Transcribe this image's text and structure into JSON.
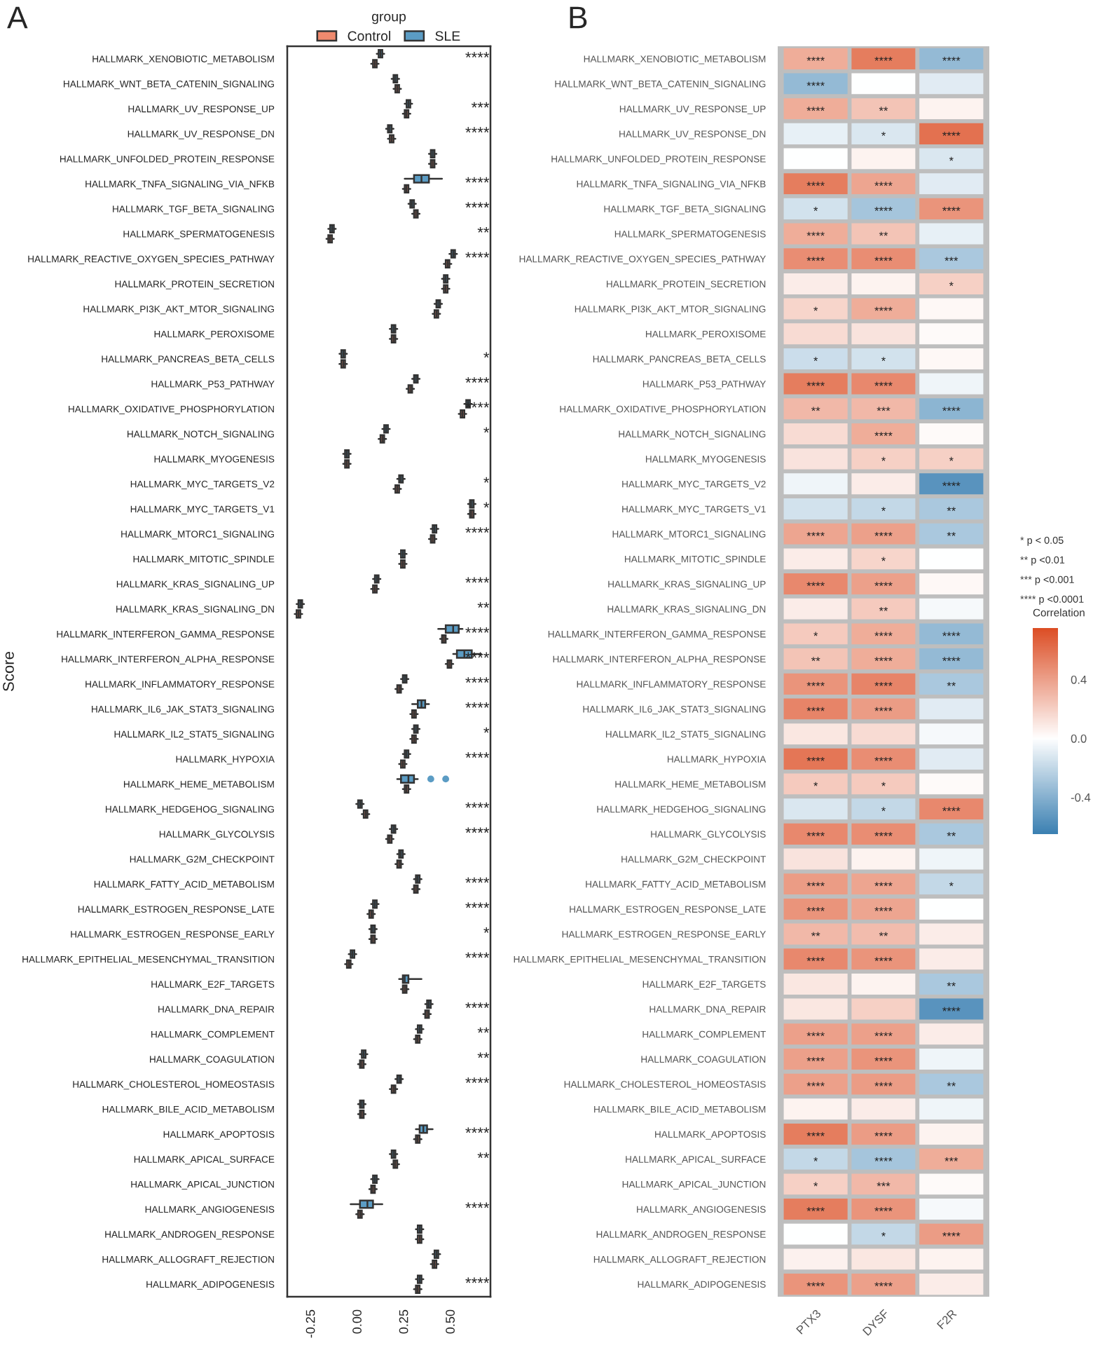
{
  "chart_data": [
    {
      "type": "box",
      "title": "A",
      "orientation": "horizontal",
      "ylabel": "Score",
      "legend_title": "group",
      "legend": "top",
      "categories": [
        "HALLMARK_XENOBIOTIC_METABOLISM",
        "HALLMARK_WNT_BETA_CATENIN_SIGNALING",
        "HALLMARK_UV_RESPONSE_UP",
        "HALLMARK_UV_RESPONSE_DN",
        "HALLMARK_UNFOLDED_PROTEIN_RESPONSE",
        "HALLMARK_TNFA_SIGNALING_VIA_NFKB",
        "HALLMARK_TGF_BETA_SIGNALING",
        "HALLMARK_SPERMATOGENESIS",
        "HALLMARK_REACTIVE_OXYGEN_SPECIES_PATHWAY",
        "HALLMARK_PROTEIN_SECRETION",
        "HALLMARK_PI3K_AKT_MTOR_SIGNALING",
        "HALLMARK_PEROXISOME",
        "HALLMARK_PANCREAS_BETA_CELLS",
        "HALLMARK_P53_PATHWAY",
        "HALLMARK_OXIDATIVE_PHOSPHORYLATION",
        "HALLMARK_NOTCH_SIGNALING",
        "HALLMARK_MYOGENESIS",
        "HALLMARK_MYC_TARGETS_V2",
        "HALLMARK_MYC_TARGETS_V1",
        "HALLMARK_MTORC1_SIGNALING",
        "HALLMARK_MITOTIC_SPINDLE",
        "HALLMARK_KRAS_SIGNALING_UP",
        "HALLMARK_KRAS_SIGNALING_DN",
        "HALLMARK_INTERFERON_GAMMA_RESPONSE",
        "HALLMARK_INTERFERON_ALPHA_RESPONSE",
        "HALLMARK_INFLAMMATORY_RESPONSE",
        "HALLMARK_IL6_JAK_STAT3_SIGNALING",
        "HALLMARK_IL2_STAT5_SIGNALING",
        "HALLMARK_HYPOXIA",
        "HALLMARK_HEME_METABOLISM",
        "HALLMARK_HEDGEHOG_SIGNALING",
        "HALLMARK_GLYCOLYSIS",
        "HALLMARK_G2M_CHECKPOINT",
        "HALLMARK_FATTY_ACID_METABOLISM",
        "HALLMARK_ESTROGEN_RESPONSE_LATE",
        "HALLMARK_ESTROGEN_RESPONSE_EARLY",
        "HALLMARK_EPITHELIAL_MESENCHYMAL_TRANSITION",
        "HALLMARK_E2F_TARGETS",
        "HALLMARK_DNA_REPAIR",
        "HALLMARK_COMPLEMENT",
        "HALLMARK_COAGULATION",
        "HALLMARK_CHOLESTEROL_HOMEOSTASIS",
        "HALLMARK_BILE_ACID_METABOLISM",
        "HALLMARK_APOPTOSIS",
        "HALLMARK_APICAL_SURFACE",
        "HALLMARK_APICAL_JUNCTION",
        "HALLMARK_ANGIOGENESIS",
        "HALLMARK_ANDROGEN_RESPONSE",
        "HALLMARK_ALLOGRAFT_REJECTION",
        "HALLMARK_ADIPOGENESIS"
      ],
      "xlim": [
        -0.38,
        0.71
      ],
      "xticks": [
        {
          "value": -0.25,
          "label": "-0.25"
        },
        {
          "value": 0,
          "label": "0.00"
        },
        {
          "value": 0.25,
          "label": "0.25"
        },
        {
          "value": 0.5,
          "label": "0.50"
        }
      ],
      "series": [
        {
          "name": "Control",
          "color": "#ef8a6e",
          "boxes": [
            {
              "low": 0.07,
              "q1": 0.08,
              "median": 0.09,
              "q3": 0.1,
              "high": 0.11
            },
            {
              "low": 0.19,
              "q1": 0.2,
              "median": 0.21,
              "q3": 0.22,
              "high": 0.23
            },
            {
              "low": 0.24,
              "q1": 0.25,
              "median": 0.26,
              "q3": 0.27,
              "high": 0.28
            },
            {
              "low": 0.16,
              "q1": 0.17,
              "median": 0.18,
              "q3": 0.19,
              "high": 0.2
            },
            {
              "low": 0.38,
              "q1": 0.39,
              "median": 0.4,
              "q3": 0.41,
              "high": 0.42
            },
            {
              "low": 0.24,
              "q1": 0.25,
              "median": 0.26,
              "q3": 0.27,
              "high": 0.28
            },
            {
              "low": 0.29,
              "q1": 0.3,
              "median": 0.31,
              "q3": 0.32,
              "high": 0.33
            },
            {
              "low": -0.17,
              "q1": -0.16,
              "median": -0.15,
              "q3": -0.14,
              "high": -0.13
            },
            {
              "low": 0.46,
              "q1": 0.47,
              "median": 0.48,
              "q3": 0.49,
              "high": 0.5
            },
            {
              "low": 0.45,
              "q1": 0.46,
              "median": 0.47,
              "q3": 0.48,
              "high": 0.49
            },
            {
              "low": 0.4,
              "q1": 0.41,
              "median": 0.42,
              "q3": 0.43,
              "high": 0.44
            },
            {
              "low": 0.17,
              "q1": 0.18,
              "median": 0.19,
              "q3": 0.2,
              "high": 0.21
            },
            {
              "low": -0.1,
              "q1": -0.09,
              "median": -0.08,
              "q3": -0.07,
              "high": -0.06
            },
            {
              "low": 0.26,
              "q1": 0.27,
              "median": 0.28,
              "q3": 0.29,
              "high": 0.3
            },
            {
              "low": 0.54,
              "q1": 0.55,
              "median": 0.56,
              "q3": 0.57,
              "high": 0.58
            },
            {
              "low": 0.11,
              "q1": 0.12,
              "median": 0.13,
              "q3": 0.14,
              "high": 0.15
            },
            {
              "low": -0.08,
              "q1": -0.07,
              "median": -0.06,
              "q3": -0.05,
              "high": -0.04
            },
            {
              "low": 0.19,
              "q1": 0.2,
              "median": 0.21,
              "q3": 0.22,
              "high": 0.23
            },
            {
              "low": 0.59,
              "q1": 0.6,
              "median": 0.61,
              "q3": 0.62,
              "high": 0.63
            },
            {
              "low": 0.38,
              "q1": 0.39,
              "median": 0.4,
              "q3": 0.41,
              "high": 0.42
            },
            {
              "low": 0.22,
              "q1": 0.23,
              "median": 0.24,
              "q3": 0.25,
              "high": 0.26
            },
            {
              "low": 0.07,
              "q1": 0.08,
              "median": 0.09,
              "q3": 0.1,
              "high": 0.11
            },
            {
              "low": -0.34,
              "q1": -0.33,
              "median": -0.32,
              "q3": -0.31,
              "high": -0.3
            },
            {
              "low": 0.44,
              "q1": 0.45,
              "median": 0.46,
              "q3": 0.47,
              "high": 0.48
            },
            {
              "low": 0.47,
              "q1": 0.48,
              "median": 0.49,
              "q3": 0.5,
              "high": 0.51
            },
            {
              "low": 0.2,
              "q1": 0.21,
              "median": 0.22,
              "q3": 0.23,
              "high": 0.24
            },
            {
              "low": 0.28,
              "q1": 0.29,
              "median": 0.3,
              "q3": 0.31,
              "high": 0.32
            },
            {
              "low": 0.28,
              "q1": 0.29,
              "median": 0.3,
              "q3": 0.31,
              "high": 0.32
            },
            {
              "low": 0.22,
              "q1": 0.23,
              "median": 0.24,
              "q3": 0.25,
              "high": 0.26
            },
            {
              "low": 0.24,
              "q1": 0.25,
              "median": 0.26,
              "q3": 0.27,
              "high": 0.28
            },
            {
              "low": 0.02,
              "q1": 0.03,
              "median": 0.04,
              "q3": 0.05,
              "high": 0.06
            },
            {
              "low": 0.15,
              "q1": 0.16,
              "median": 0.17,
              "q3": 0.18,
              "high": 0.19
            },
            {
              "low": 0.2,
              "q1": 0.21,
              "median": 0.22,
              "q3": 0.23,
              "high": 0.24
            },
            {
              "low": 0.29,
              "q1": 0.3,
              "median": 0.31,
              "q3": 0.32,
              "high": 0.33
            },
            {
              "low": 0.05,
              "q1": 0.06,
              "median": 0.07,
              "q3": 0.08,
              "high": 0.09
            },
            {
              "low": 0.06,
              "q1": 0.07,
              "median": 0.08,
              "q3": 0.09,
              "high": 0.1
            },
            {
              "low": -0.07,
              "q1": -0.06,
              "median": -0.05,
              "q3": -0.04,
              "high": -0.03
            },
            {
              "low": 0.23,
              "q1": 0.24,
              "median": 0.25,
              "q3": 0.26,
              "high": 0.27
            },
            {
              "low": 0.35,
              "q1": 0.36,
              "median": 0.37,
              "q3": 0.38,
              "high": 0.39
            },
            {
              "low": 0.3,
              "q1": 0.31,
              "median": 0.32,
              "q3": 0.33,
              "high": 0.34
            },
            {
              "low": 0.0,
              "q1": 0.01,
              "median": 0.02,
              "q3": 0.03,
              "high": 0.04
            },
            {
              "low": 0.17,
              "q1": 0.18,
              "median": 0.19,
              "q3": 0.2,
              "high": 0.21
            },
            {
              "low": 0.0,
              "q1": 0.01,
              "median": 0.02,
              "q3": 0.03,
              "high": 0.04
            },
            {
              "low": 0.3,
              "q1": 0.31,
              "median": 0.32,
              "q3": 0.33,
              "high": 0.34
            },
            {
              "low": 0.18,
              "q1": 0.19,
              "median": 0.2,
              "q3": 0.21,
              "high": 0.22
            },
            {
              "low": 0.06,
              "q1": 0.07,
              "median": 0.08,
              "q3": 0.09,
              "high": 0.1
            },
            {
              "low": -0.01,
              "q1": 0.0,
              "median": 0.01,
              "q3": 0.02,
              "high": 0.03
            },
            {
              "low": 0.31,
              "q1": 0.32,
              "median": 0.33,
              "q3": 0.34,
              "high": 0.35
            },
            {
              "low": 0.39,
              "q1": 0.4,
              "median": 0.41,
              "q3": 0.42,
              "high": 0.43
            },
            {
              "low": 0.3,
              "q1": 0.31,
              "median": 0.32,
              "q3": 0.33,
              "high": 0.34
            }
          ]
        },
        {
          "name": "SLE",
          "color": "#5b9cc4",
          "boxes": [
            {
              "low": 0.1,
              "q1": 0.11,
              "median": 0.12,
              "q3": 0.13,
              "high": 0.14
            },
            {
              "low": 0.18,
              "q1": 0.19,
              "median": 0.2,
              "q3": 0.21,
              "high": 0.22
            },
            {
              "low": 0.25,
              "q1": 0.26,
              "median": 0.27,
              "q3": 0.28,
              "high": 0.29
            },
            {
              "low": 0.15,
              "q1": 0.16,
              "median": 0.17,
              "q3": 0.18,
              "high": 0.19
            },
            {
              "low": 0.38,
              "q1": 0.39,
              "median": 0.4,
              "q3": 0.41,
              "high": 0.42
            },
            {
              "low": 0.25,
              "q1": 0.3,
              "median": 0.34,
              "q3": 0.38,
              "high": 0.45
            },
            {
              "low": 0.27,
              "q1": 0.28,
              "median": 0.29,
              "q3": 0.3,
              "high": 0.31
            },
            {
              "low": -0.16,
              "q1": -0.15,
              "median": -0.14,
              "q3": -0.13,
              "high": -0.12
            },
            {
              "low": 0.49,
              "q1": 0.5,
              "median": 0.51,
              "q3": 0.52,
              "high": 0.53
            },
            {
              "low": 0.45,
              "q1": 0.46,
              "median": 0.47,
              "q3": 0.48,
              "high": 0.49
            },
            {
              "low": 0.41,
              "q1": 0.42,
              "median": 0.43,
              "q3": 0.44,
              "high": 0.45
            },
            {
              "low": 0.17,
              "q1": 0.18,
              "median": 0.19,
              "q3": 0.2,
              "high": 0.21
            },
            {
              "low": -0.1,
              "q1": -0.09,
              "median": -0.08,
              "q3": -0.07,
              "high": -0.06
            },
            {
              "low": 0.29,
              "q1": 0.3,
              "median": 0.31,
              "q3": 0.32,
              "high": 0.33
            },
            {
              "low": 0.57,
              "q1": 0.58,
              "median": 0.59,
              "q3": 0.6,
              "high": 0.61
            },
            {
              "low": 0.13,
              "q1": 0.14,
              "median": 0.15,
              "q3": 0.16,
              "high": 0.17
            },
            {
              "low": -0.08,
              "q1": -0.07,
              "median": -0.06,
              "q3": -0.05,
              "high": -0.04
            },
            {
              "low": 0.21,
              "q1": 0.22,
              "median": 0.23,
              "q3": 0.24,
              "high": 0.25
            },
            {
              "low": 0.59,
              "q1": 0.6,
              "median": 0.61,
              "q3": 0.62,
              "high": 0.63
            },
            {
              "low": 0.39,
              "q1": 0.4,
              "median": 0.41,
              "q3": 0.42,
              "high": 0.43
            },
            {
              "low": 0.22,
              "q1": 0.23,
              "median": 0.24,
              "q3": 0.25,
              "high": 0.26
            },
            {
              "low": 0.08,
              "q1": 0.09,
              "median": 0.1,
              "q3": 0.11,
              "high": 0.12
            },
            {
              "low": -0.33,
              "q1": -0.32,
              "median": -0.31,
              "q3": -0.3,
              "high": -0.29
            },
            {
              "low": 0.43,
              "q1": 0.47,
              "median": 0.51,
              "q3": 0.54,
              "high": 0.56
            },
            {
              "low": 0.51,
              "q1": 0.53,
              "median": 0.57,
              "q3": 0.61,
              "high": 0.66
            },
            {
              "low": 0.23,
              "q1": 0.24,
              "median": 0.25,
              "q3": 0.26,
              "high": 0.27
            },
            {
              "low": 0.29,
              "q1": 0.32,
              "median": 0.34,
              "q3": 0.36,
              "high": 0.38
            },
            {
              "low": 0.29,
              "q1": 0.3,
              "median": 0.31,
              "q3": 0.32,
              "high": 0.33
            },
            {
              "low": 0.24,
              "q1": 0.25,
              "median": 0.26,
              "q3": 0.27,
              "high": 0.28
            },
            {
              "low": 0.21,
              "q1": 0.23,
              "median": 0.27,
              "q3": 0.3,
              "high": 0.32,
              "outliers": [
                0.39,
                0.47
              ]
            },
            {
              "low": -0.01,
              "q1": 0.0,
              "median": 0.01,
              "q3": 0.02,
              "high": 0.03
            },
            {
              "low": 0.17,
              "q1": 0.18,
              "median": 0.19,
              "q3": 0.2,
              "high": 0.21
            },
            {
              "low": 0.21,
              "q1": 0.22,
              "median": 0.23,
              "q3": 0.24,
              "high": 0.25
            },
            {
              "low": 0.3,
              "q1": 0.31,
              "median": 0.32,
              "q3": 0.33,
              "high": 0.34
            },
            {
              "low": 0.07,
              "q1": 0.08,
              "median": 0.09,
              "q3": 0.1,
              "high": 0.11
            },
            {
              "low": 0.06,
              "q1": 0.07,
              "median": 0.08,
              "q3": 0.09,
              "high": 0.1
            },
            {
              "low": -0.05,
              "q1": -0.04,
              "median": -0.03,
              "q3": -0.02,
              "high": -0.01
            },
            {
              "low": 0.22,
              "q1": 0.24,
              "median": 0.25,
              "q3": 0.27,
              "high": 0.34
            },
            {
              "low": 0.36,
              "q1": 0.37,
              "median": 0.38,
              "q3": 0.39,
              "high": 0.4
            },
            {
              "low": 0.31,
              "q1": 0.32,
              "median": 0.33,
              "q3": 0.34,
              "high": 0.35
            },
            {
              "low": 0.01,
              "q1": 0.02,
              "median": 0.03,
              "q3": 0.04,
              "high": 0.05
            },
            {
              "low": 0.2,
              "q1": 0.21,
              "median": 0.22,
              "q3": 0.23,
              "high": 0.24
            },
            {
              "low": 0.0,
              "q1": 0.01,
              "median": 0.02,
              "q3": 0.03,
              "high": 0.04
            },
            {
              "low": 0.31,
              "q1": 0.33,
              "median": 0.35,
              "q3": 0.37,
              "high": 0.4
            },
            {
              "low": 0.17,
              "q1": 0.18,
              "median": 0.19,
              "q3": 0.2,
              "high": 0.21
            },
            {
              "low": 0.07,
              "q1": 0.08,
              "median": 0.09,
              "q3": 0.1,
              "high": 0.11
            },
            {
              "low": -0.04,
              "q1": 0.01,
              "median": 0.05,
              "q3": 0.08,
              "high": 0.13
            },
            {
              "low": 0.31,
              "q1": 0.32,
              "median": 0.33,
              "q3": 0.34,
              "high": 0.35
            },
            {
              "low": 0.4,
              "q1": 0.41,
              "median": 0.42,
              "q3": 0.43,
              "high": 0.44
            },
            {
              "low": 0.31,
              "q1": 0.32,
              "median": 0.33,
              "q3": 0.34,
              "high": 0.35
            }
          ]
        }
      ],
      "value_labels": [
        "****",
        null,
        "***",
        "****",
        null,
        "****",
        "****",
        "**",
        "****",
        null,
        null,
        null,
        "*",
        "****",
        "****",
        "*",
        null,
        "*",
        "*",
        "****",
        null,
        "****",
        "**",
        "****",
        "****",
        "****",
        "****",
        "*",
        "****",
        null,
        "****",
        "****",
        null,
        "****",
        "****",
        "*",
        "****",
        null,
        "****",
        "**",
        "**",
        "****",
        null,
        "****",
        "**",
        null,
        "****",
        null,
        null,
        "****"
      ]
    },
    {
      "type": "heatmap",
      "title": "B",
      "clabel": "Correlation",
      "categories": [
        "PTX3",
        "DYSF",
        "F2R"
      ],
      "y_categories": [
        "HALLMARK_XENOBIOTIC_METABOLISM",
        "HALLMARK_WNT_BETA_CATENIN_SIGNALING",
        "HALLMARK_UV_RESPONSE_UP",
        "HALLMARK_UV_RESPONSE_DN",
        "HALLMARK_UNFOLDED_PROTEIN_RESPONSE",
        "HALLMARK_TNFA_SIGNALING_VIA_NFKB",
        "HALLMARK_TGF_BETA_SIGNALING",
        "HALLMARK_SPERMATOGENESIS",
        "HALLMARK_REACTIVE_OXYGEN_SPECIES_PATHWAY",
        "HALLMARK_PROTEIN_SECRETION",
        "HALLMARK_PI3K_AKT_MTOR_SIGNALING",
        "HALLMARK_PEROXISOME",
        "HALLMARK_PANCREAS_BETA_CELLS",
        "HALLMARK_P53_PATHWAY",
        "HALLMARK_OXIDATIVE_PHOSPHORYLATION",
        "HALLMARK_NOTCH_SIGNALING",
        "HALLMARK_MYOGENESIS",
        "HALLMARK_MYC_TARGETS_V2",
        "HALLMARK_MYC_TARGETS_V1",
        "HALLMARK_MTORC1_SIGNALING",
        "HALLMARK_MITOTIC_SPINDLE",
        "HALLMARK_KRAS_SIGNALING_UP",
        "HALLMARK_KRAS_SIGNALING_DN",
        "HALLMARK_INTERFERON_GAMMA_RESPONSE",
        "HALLMARK_INTERFERON_ALPHA_RESPONSE",
        "HALLMARK_INFLAMMATORY_RESPONSE",
        "HALLMARK_IL6_JAK_STAT3_SIGNALING",
        "HALLMARK_IL2_STAT5_SIGNALING",
        "HALLMARK_HYPOXIA",
        "HALLMARK_HEME_METABOLISM",
        "HALLMARK_HEDGEHOG_SIGNALING",
        "HALLMARK_GLYCOLYSIS",
        "HALLMARK_G2M_CHECKPOINT",
        "HALLMARK_FATTY_ACID_METABOLISM",
        "HALLMARK_ESTROGEN_RESPONSE_LATE",
        "HALLMARK_ESTROGEN_RESPONSE_EARLY",
        "HALLMARK_EPITHELIAL_MESENCHYMAL_TRANSITION",
        "HALLMARK_E2F_TARGETS",
        "HALLMARK_DNA_REPAIR",
        "HALLMARK_COMPLEMENT",
        "HALLMARK_COAGULATION",
        "HALLMARK_CHOLESTEROL_HOMEOSTASIS",
        "HALLMARK_BILE_ACID_METABOLISM",
        "HALLMARK_APOPTOSIS",
        "HALLMARK_APICAL_SURFACE",
        "HALLMARK_APICAL_JUNCTION",
        "HALLMARK_ANGIOGENESIS",
        "HALLMARK_ANDROGEN_RESPONSE",
        "HALLMARK_ALLOGRAFT_REJECTION",
        "HALLMARK_ADIPOGENESIS"
      ],
      "cells": [
        [
          0.35,
          0.55,
          -0.35
        ],
        [
          -0.35,
          0.0,
          -0.1
        ],
        [
          0.35,
          0.25,
          0.05
        ],
        [
          -0.08,
          -0.12,
          0.6
        ],
        [
          0.0,
          0.05,
          -0.12
        ],
        [
          0.55,
          0.38,
          -0.1
        ],
        [
          -0.15,
          -0.3,
          0.45
        ],
        [
          0.35,
          0.25,
          -0.08
        ],
        [
          0.48,
          0.48,
          -0.28
        ],
        [
          0.08,
          0.05,
          0.2
        ],
        [
          0.18,
          0.35,
          0.03
        ],
        [
          0.15,
          0.12,
          0.02
        ],
        [
          -0.17,
          -0.15,
          0.03
        ],
        [
          0.55,
          0.5,
          -0.05
        ],
        [
          0.3,
          0.3,
          -0.38
        ],
        [
          0.15,
          0.35,
          0.02
        ],
        [
          0.12,
          0.2,
          0.2
        ],
        [
          -0.05,
          0.08,
          -0.55
        ],
        [
          -0.15,
          -0.2,
          -0.28
        ],
        [
          0.38,
          0.4,
          -0.28
        ],
        [
          0.08,
          0.18,
          0.0
        ],
        [
          0.5,
          0.4,
          0.03
        ],
        [
          0.08,
          0.22,
          -0.03
        ],
        [
          0.22,
          0.35,
          -0.35
        ],
        [
          0.25,
          0.35,
          -0.35
        ],
        [
          0.45,
          0.52,
          -0.28
        ],
        [
          0.52,
          0.42,
          -0.1
        ],
        [
          0.1,
          0.15,
          -0.03
        ],
        [
          0.58,
          0.48,
          -0.1
        ],
        [
          0.22,
          0.22,
          0.02
        ],
        [
          -0.12,
          -0.2,
          0.5
        ],
        [
          0.5,
          0.48,
          -0.28
        ],
        [
          0.12,
          0.05,
          -0.05
        ],
        [
          0.42,
          0.38,
          -0.2
        ],
        [
          0.45,
          0.38,
          0.0
        ],
        [
          0.3,
          0.28,
          0.08
        ],
        [
          0.5,
          0.45,
          0.08
        ],
        [
          0.1,
          0.05,
          -0.28
        ],
        [
          0.1,
          0.2,
          -0.55
        ],
        [
          0.4,
          0.4,
          0.08
        ],
        [
          0.4,
          0.45,
          -0.05
        ],
        [
          0.4,
          0.42,
          -0.28
        ],
        [
          0.05,
          0.08,
          -0.05
        ],
        [
          0.55,
          0.42,
          0.05
        ],
        [
          -0.2,
          -0.3,
          0.35
        ],
        [
          0.2,
          0.3,
          0.02
        ],
        [
          0.55,
          0.45,
          -0.03
        ],
        [
          0.0,
          -0.2,
          0.42
        ],
        [
          0.06,
          0.1,
          0.05
        ],
        [
          0.45,
          0.4,
          0.08
        ]
      ],
      "cell_labels": [
        [
          "****",
          "****",
          "****"
        ],
        [
          "****",
          null,
          null
        ],
        [
          "****",
          "**",
          null
        ],
        [
          null,
          "*",
          "****"
        ],
        [
          null,
          null,
          "*"
        ],
        [
          "****",
          "****",
          null
        ],
        [
          "*",
          "****",
          "****"
        ],
        [
          "****",
          "**",
          null
        ],
        [
          "****",
          "****",
          "***"
        ],
        [
          null,
          null,
          "*"
        ],
        [
          "*",
          "****",
          null
        ],
        [
          null,
          null,
          null
        ],
        [
          "*",
          "*",
          null
        ],
        [
          "****",
          "****",
          null
        ],
        [
          "**",
          "***",
          "****"
        ],
        [
          null,
          "****",
          null
        ],
        [
          null,
          "*",
          "*"
        ],
        [
          null,
          null,
          "****"
        ],
        [
          null,
          "*",
          "**"
        ],
        [
          "****",
          "****",
          "**"
        ],
        [
          null,
          "*",
          null
        ],
        [
          "****",
          "****",
          null
        ],
        [
          null,
          "**",
          null
        ],
        [
          "*",
          "****",
          "****"
        ],
        [
          "**",
          "****",
          "****"
        ],
        [
          "****",
          "****",
          "**"
        ],
        [
          "****",
          "****",
          null
        ],
        [
          null,
          null,
          null
        ],
        [
          "****",
          "****",
          null
        ],
        [
          "*",
          "*",
          null
        ],
        [
          null,
          "*",
          "****"
        ],
        [
          "****",
          "****",
          "**"
        ],
        [
          null,
          null,
          null
        ],
        [
          "****",
          "****",
          "*"
        ],
        [
          "****",
          "****",
          null
        ],
        [
          "**",
          "**",
          null
        ],
        [
          "****",
          "****",
          null
        ],
        [
          null,
          null,
          "**"
        ],
        [
          null,
          null,
          "****"
        ],
        [
          "****",
          "****",
          null
        ],
        [
          "****",
          "****",
          null
        ],
        [
          "****",
          "****",
          "**"
        ],
        [
          null,
          null,
          null
        ],
        [
          "****",
          "****",
          null
        ],
        [
          "*",
          "****",
          "***"
        ],
        [
          "*",
          "***",
          null
        ],
        [
          "****",
          "****",
          null
        ],
        [
          null,
          "*",
          "****"
        ],
        [
          null,
          null,
          null
        ],
        [
          "****",
          "****",
          null
        ]
      ],
      "clim": [
        -0.65,
        0.75
      ],
      "cticks": [
        -0.4,
        {
          "value": 0,
          "label": "0.0"
        },
        0.4
      ],
      "annotations": [
        "* p < 0.05",
        "** p <0.01",
        "*** p <0.001",
        "**** p <0.0001"
      ]
    }
  ]
}
